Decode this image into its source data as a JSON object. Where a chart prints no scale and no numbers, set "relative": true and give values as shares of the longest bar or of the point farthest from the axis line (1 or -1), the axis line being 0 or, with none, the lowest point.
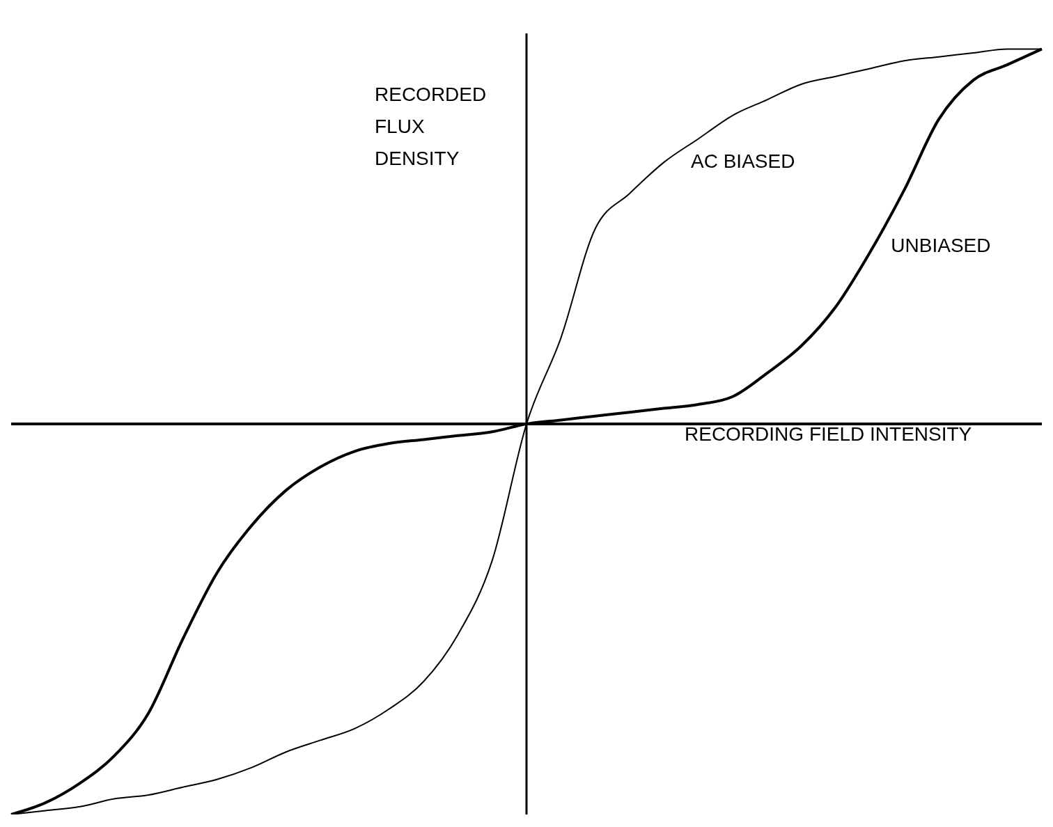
{
  "chart_data": {
    "type": "line",
    "relative": true,
    "xlabel": "RECORDING FIELD INTENSITY",
    "ylabel": "RECORDED\nFLUX\nDENSITY",
    "categories": [
      null,
      null,
      null,
      null,
      null,
      null,
      null,
      null,
      null,
      null,
      null,
      null,
      null,
      null,
      null,
      null,
      null,
      null,
      null,
      null,
      null,
      null,
      null,
      null,
      null,
      null,
      null,
      null,
      null,
      null,
      null
    ],
    "series": [
      {
        "name": "AC BIASED",
        "color": "#000000",
        "values": [
          -1.0,
          -0.99,
          -0.98,
          -0.96,
          -0.95,
          -0.93,
          -0.91,
          -0.88,
          -0.84,
          -0.81,
          -0.78,
          -0.73,
          -0.66,
          -0.54,
          -0.35,
          0,
          0.22,
          0.5,
          0.59,
          0.67,
          0.73,
          0.79,
          0.83,
          0.87,
          0.89,
          0.91,
          0.93,
          0.94,
          0.95,
          0.96,
          0.96
        ]
      },
      {
        "name": "UNBIASED",
        "color": "#000000",
        "values": [
          -1.0,
          -0.97,
          -0.92,
          -0.85,
          -0.74,
          -0.55,
          -0.38,
          -0.26,
          -0.17,
          -0.11,
          -0.07,
          -0.05,
          -0.04,
          -0.03,
          -0.02,
          0,
          0.01,
          0.02,
          0.03,
          0.04,
          0.05,
          0.07,
          0.13,
          0.2,
          0.3,
          0.44,
          0.6,
          0.78,
          0.88,
          0.92,
          0.96
        ]
      }
    ],
    "grid": false,
    "legend": false,
    "marker": "none",
    "line_style": "solid"
  }
}
